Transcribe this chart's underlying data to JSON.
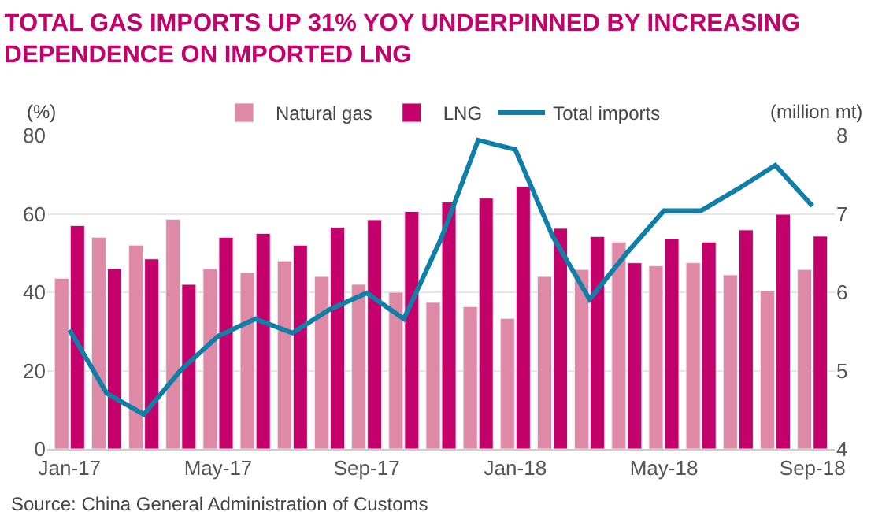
{
  "chart_data": {
    "type": "bar",
    "title": "TOTAL GAS IMPORTS UP 31% YOY UNDERPINNED BY INCREASING\nDEPENDENCE ON IMPORTED LNG",
    "ylabel": "(%)",
    "y2label": "(million mt)",
    "categories": [
      "Jan-17",
      null,
      null,
      null,
      "May-17",
      null,
      null,
      null,
      "Sep-17",
      null,
      null,
      null,
      "Jan-18",
      null,
      null,
      null,
      "May-18",
      null,
      null,
      null,
      "Sep-18"
    ],
    "series": [
      {
        "name": "Natural gas",
        "color": "#de8aa6",
        "values": [
          43.5,
          54,
          52,
          58.6,
          46,
          45,
          48,
          44,
          42,
          40,
          37.4,
          36.3,
          33.3,
          44,
          45.8,
          52.8,
          46.7,
          47.5,
          44.4,
          40.3,
          45.8
        ]
      },
      {
        "name": "LNG",
        "color": "#c4006a",
        "values": [
          57,
          46,
          48.5,
          42,
          54,
          55,
          52,
          56.6,
          58.5,
          60.6,
          63,
          64,
          67,
          56.3,
          54.2,
          47.5,
          53.6,
          52.8,
          55.9,
          59.9,
          54.3
        ]
      },
      {
        "name": "Total imports",
        "type": "line",
        "axis": "y2",
        "color": "#0f7fa8",
        "values": [
          5.52,
          4.71,
          4.44,
          5.01,
          5.44,
          5.66,
          5.48,
          5.78,
          5.99,
          5.66,
          6.68,
          7.94,
          7.82,
          6.72,
          5.91,
          6.5,
          7.04,
          7.04,
          7.32,
          7.62,
          7.1
        ]
      }
    ],
    "ylim": [
      0,
      80
    ],
    "yticks": [
      0,
      20,
      40,
      60,
      80
    ],
    "y2lim": [
      4,
      8
    ],
    "y2ticks": [
      4,
      5,
      6,
      7,
      8
    ],
    "grid": "y",
    "legend": "top",
    "marker": "none",
    "line_style": "solid",
    "annotations": [
      "Source: China General Administration of Customs"
    ]
  }
}
